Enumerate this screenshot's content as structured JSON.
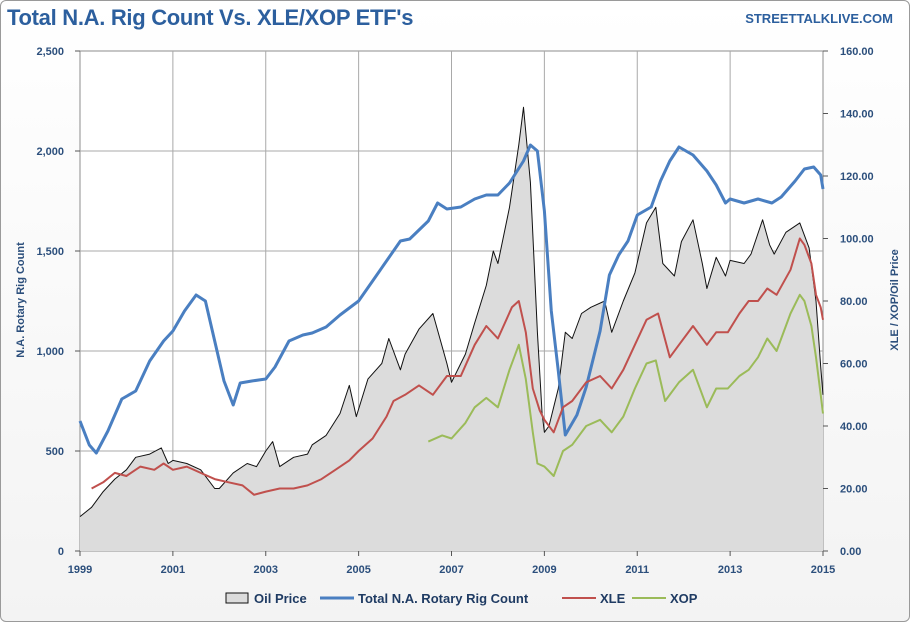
{
  "header": {
    "title": "Total N.A. Rig Count Vs. XLE/XOP ETF's",
    "source": "STREETTALKLIVE.COM"
  },
  "colors": {
    "rig": "#4a7fc1",
    "xle": "#c0504d",
    "xop": "#9bbb59",
    "oil_fill": "#dcdcdc",
    "oil_line": "#111111",
    "grid": "#a9a9a9",
    "axis_text": "#2c4f7c"
  },
  "chart_data": {
    "type": "line",
    "title": "Total N.A. Rig Count Vs. XLE/XOP ETF's",
    "xlim": [
      1999,
      2015
    ],
    "x_ticks": [
      "1999",
      "2001",
      "2003",
      "2005",
      "2007",
      "2009",
      "2011",
      "2013",
      "2015"
    ],
    "y_left": {
      "label": "N.A. Rotary Rig Count",
      "lim": [
        0,
        2500
      ],
      "ticks": [
        "0",
        "500",
        "1,000",
        "1,500",
        "2,000",
        "2,500"
      ]
    },
    "y_right": {
      "label": "XLE / XOP/Oil Price",
      "lim": [
        0,
        160
      ],
      "ticks": [
        "0.00",
        "20.00",
        "40.00",
        "60.00",
        "80.00",
        "100.00",
        "120.00",
        "140.00",
        "160.00"
      ]
    },
    "grid": true,
    "legend_position": "bottom",
    "series": [
      {
        "name": "Oil Price",
        "style": "area",
        "axis": "right",
        "points": [
          [
            1999.0,
            11
          ],
          [
            1999.25,
            14
          ],
          [
            1999.5,
            19
          ],
          [
            1999.75,
            23
          ],
          [
            2000.0,
            26
          ],
          [
            2000.2,
            30
          ],
          [
            2000.5,
            31
          ],
          [
            2000.75,
            33
          ],
          [
            2000.9,
            28
          ],
          [
            2001.0,
            29
          ],
          [
            2001.3,
            28
          ],
          [
            2001.6,
            26
          ],
          [
            2001.9,
            20
          ],
          [
            2002.0,
            20
          ],
          [
            2002.3,
            25
          ],
          [
            2002.6,
            28
          ],
          [
            2002.8,
            27
          ],
          [
            2003.0,
            32
          ],
          [
            2003.15,
            35
          ],
          [
            2003.3,
            27
          ],
          [
            2003.6,
            30
          ],
          [
            2003.9,
            31
          ],
          [
            2004.0,
            34
          ],
          [
            2004.3,
            37
          ],
          [
            2004.6,
            44
          ],
          [
            2004.8,
            53
          ],
          [
            2004.95,
            43
          ],
          [
            2005.2,
            55
          ],
          [
            2005.5,
            60
          ],
          [
            2005.65,
            68
          ],
          [
            2005.9,
            58
          ],
          [
            2006.0,
            63
          ],
          [
            2006.3,
            71
          ],
          [
            2006.6,
            76
          ],
          [
            2006.9,
            60
          ],
          [
            2007.0,
            54
          ],
          [
            2007.3,
            63
          ],
          [
            2007.5,
            73
          ],
          [
            2007.75,
            85
          ],
          [
            2007.9,
            96
          ],
          [
            2008.0,
            92
          ],
          [
            2008.25,
            110
          ],
          [
            2008.45,
            130
          ],
          [
            2008.55,
            142
          ],
          [
            2008.7,
            118
          ],
          [
            2008.85,
            70
          ],
          [
            2008.95,
            44
          ],
          [
            2009.0,
            38
          ],
          [
            2009.1,
            40
          ],
          [
            2009.3,
            52
          ],
          [
            2009.45,
            70
          ],
          [
            2009.6,
            68
          ],
          [
            2009.8,
            76
          ],
          [
            2010.0,
            78
          ],
          [
            2010.3,
            80
          ],
          [
            2010.45,
            70
          ],
          [
            2010.7,
            80
          ],
          [
            2010.95,
            89
          ],
          [
            2011.2,
            105
          ],
          [
            2011.4,
            110
          ],
          [
            2011.55,
            92
          ],
          [
            2011.8,
            88
          ],
          [
            2011.95,
            99
          ],
          [
            2012.2,
            106
          ],
          [
            2012.4,
            92
          ],
          [
            2012.5,
            84
          ],
          [
            2012.7,
            94
          ],
          [
            2012.9,
            88
          ],
          [
            2013.0,
            93
          ],
          [
            2013.3,
            92
          ],
          [
            2013.45,
            95
          ],
          [
            2013.7,
            106
          ],
          [
            2013.85,
            98
          ],
          [
            2013.95,
            95
          ],
          [
            2014.2,
            102
          ],
          [
            2014.5,
            105
          ],
          [
            2014.7,
            97
          ],
          [
            2014.85,
            80
          ],
          [
            2014.95,
            59
          ],
          [
            2015.0,
            50
          ]
        ]
      },
      {
        "name": "Total N.A. Rotary Rig Count",
        "style": "line",
        "axis": "left",
        "points": [
          [
            1999.0,
            650
          ],
          [
            1999.2,
            530
          ],
          [
            1999.35,
            490
          ],
          [
            1999.6,
            600
          ],
          [
            1999.9,
            760
          ],
          [
            2000.2,
            800
          ],
          [
            2000.5,
            950
          ],
          [
            2000.8,
            1050
          ],
          [
            2001.0,
            1100
          ],
          [
            2001.25,
            1200
          ],
          [
            2001.5,
            1280
          ],
          [
            2001.7,
            1250
          ],
          [
            2001.9,
            1050
          ],
          [
            2002.1,
            850
          ],
          [
            2002.3,
            730
          ],
          [
            2002.45,
            840
          ],
          [
            2002.7,
            850
          ],
          [
            2003.0,
            860
          ],
          [
            2003.2,
            920
          ],
          [
            2003.5,
            1050
          ],
          [
            2003.8,
            1080
          ],
          [
            2004.0,
            1090
          ],
          [
            2004.3,
            1120
          ],
          [
            2004.6,
            1180
          ],
          [
            2005.0,
            1250
          ],
          [
            2005.3,
            1350
          ],
          [
            2005.6,
            1450
          ],
          [
            2005.9,
            1550
          ],
          [
            2006.1,
            1560
          ],
          [
            2006.5,
            1650
          ],
          [
            2006.7,
            1740
          ],
          [
            2006.9,
            1710
          ],
          [
            2007.2,
            1720
          ],
          [
            2007.5,
            1760
          ],
          [
            2007.75,
            1780
          ],
          [
            2008.0,
            1780
          ],
          [
            2008.25,
            1840
          ],
          [
            2008.55,
            1950
          ],
          [
            2008.7,
            2030
          ],
          [
            2008.85,
            2000
          ],
          [
            2009.0,
            1700
          ],
          [
            2009.15,
            1200
          ],
          [
            2009.3,
            900
          ],
          [
            2009.45,
            580
          ],
          [
            2009.7,
            680
          ],
          [
            2009.9,
            820
          ],
          [
            2010.2,
            1100
          ],
          [
            2010.4,
            1380
          ],
          [
            2010.6,
            1480
          ],
          [
            2010.8,
            1550
          ],
          [
            2011.0,
            1680
          ],
          [
            2011.3,
            1720
          ],
          [
            2011.5,
            1850
          ],
          [
            2011.7,
            1950
          ],
          [
            2011.9,
            2020
          ],
          [
            2012.2,
            1980
          ],
          [
            2012.5,
            1900
          ],
          [
            2012.7,
            1830
          ],
          [
            2012.9,
            1740
          ],
          [
            2013.0,
            1760
          ],
          [
            2013.3,
            1740
          ],
          [
            2013.6,
            1760
          ],
          [
            2013.9,
            1740
          ],
          [
            2014.1,
            1770
          ],
          [
            2014.4,
            1850
          ],
          [
            2014.6,
            1910
          ],
          [
            2014.8,
            1920
          ],
          [
            2014.95,
            1880
          ],
          [
            2015.0,
            1810
          ]
        ]
      },
      {
        "name": "XLE",
        "style": "line",
        "axis": "right",
        "points": [
          [
            1999.25,
            20
          ],
          [
            1999.5,
            22
          ],
          [
            1999.75,
            25
          ],
          [
            2000.0,
            24
          ],
          [
            2000.3,
            27
          ],
          [
            2000.6,
            26
          ],
          [
            2000.8,
            28
          ],
          [
            2001.0,
            26
          ],
          [
            2001.3,
            27
          ],
          [
            2001.6,
            25
          ],
          [
            2001.9,
            23
          ],
          [
            2002.2,
            22
          ],
          [
            2002.5,
            21
          ],
          [
            2002.75,
            18
          ],
          [
            2003.0,
            19
          ],
          [
            2003.3,
            20
          ],
          [
            2003.6,
            20
          ],
          [
            2003.9,
            21
          ],
          [
            2004.2,
            23
          ],
          [
            2004.5,
            26
          ],
          [
            2004.8,
            29
          ],
          [
            2005.0,
            32
          ],
          [
            2005.3,
            36
          ],
          [
            2005.6,
            43
          ],
          [
            2005.75,
            48
          ],
          [
            2006.0,
            50
          ],
          [
            2006.3,
            53
          ],
          [
            2006.6,
            50
          ],
          [
            2006.9,
            56
          ],
          [
            2007.2,
            56
          ],
          [
            2007.5,
            66
          ],
          [
            2007.75,
            72
          ],
          [
            2008.0,
            68
          ],
          [
            2008.3,
            78
          ],
          [
            2008.45,
            80
          ],
          [
            2008.6,
            70
          ],
          [
            2008.75,
            52
          ],
          [
            2008.9,
            45
          ],
          [
            2009.0,
            42
          ],
          [
            2009.2,
            38
          ],
          [
            2009.4,
            46
          ],
          [
            2009.6,
            48
          ],
          [
            2009.9,
            54
          ],
          [
            2010.2,
            56
          ],
          [
            2010.45,
            52
          ],
          [
            2010.7,
            58
          ],
          [
            2010.95,
            66
          ],
          [
            2011.2,
            74
          ],
          [
            2011.45,
            76
          ],
          [
            2011.7,
            62
          ],
          [
            2011.9,
            66
          ],
          [
            2012.2,
            72
          ],
          [
            2012.5,
            66
          ],
          [
            2012.7,
            70
          ],
          [
            2012.95,
            70
          ],
          [
            2013.2,
            76
          ],
          [
            2013.4,
            80
          ],
          [
            2013.6,
            80
          ],
          [
            2013.8,
            84
          ],
          [
            2014.0,
            82
          ],
          [
            2014.3,
            90
          ],
          [
            2014.5,
            100
          ],
          [
            2014.6,
            98
          ],
          [
            2014.75,
            92
          ],
          [
            2014.85,
            82
          ],
          [
            2014.95,
            78
          ],
          [
            2015.0,
            74
          ]
        ]
      },
      {
        "name": "XOP",
        "style": "line",
        "axis": "right",
        "points": [
          [
            2006.5,
            35
          ],
          [
            2006.8,
            37
          ],
          [
            2007.0,
            36
          ],
          [
            2007.3,
            41
          ],
          [
            2007.5,
            46
          ],
          [
            2007.75,
            49
          ],
          [
            2008.0,
            46
          ],
          [
            2008.25,
            58
          ],
          [
            2008.45,
            66
          ],
          [
            2008.6,
            55
          ],
          [
            2008.75,
            38
          ],
          [
            2008.85,
            28
          ],
          [
            2009.0,
            27
          ],
          [
            2009.2,
            24
          ],
          [
            2009.4,
            32
          ],
          [
            2009.6,
            34
          ],
          [
            2009.9,
            40
          ],
          [
            2010.2,
            42
          ],
          [
            2010.45,
            38
          ],
          [
            2010.7,
            43
          ],
          [
            2010.95,
            52
          ],
          [
            2011.2,
            60
          ],
          [
            2011.4,
            61
          ],
          [
            2011.6,
            48
          ],
          [
            2011.9,
            54
          ],
          [
            2012.2,
            58
          ],
          [
            2012.5,
            46
          ],
          [
            2012.7,
            52
          ],
          [
            2012.95,
            52
          ],
          [
            2013.2,
            56
          ],
          [
            2013.4,
            58
          ],
          [
            2013.6,
            62
          ],
          [
            2013.8,
            68
          ],
          [
            2014.0,
            64
          ],
          [
            2014.3,
            76
          ],
          [
            2014.5,
            82
          ],
          [
            2014.6,
            80
          ],
          [
            2014.75,
            72
          ],
          [
            2014.85,
            62
          ],
          [
            2014.95,
            50
          ],
          [
            2015.0,
            44
          ]
        ]
      }
    ]
  }
}
